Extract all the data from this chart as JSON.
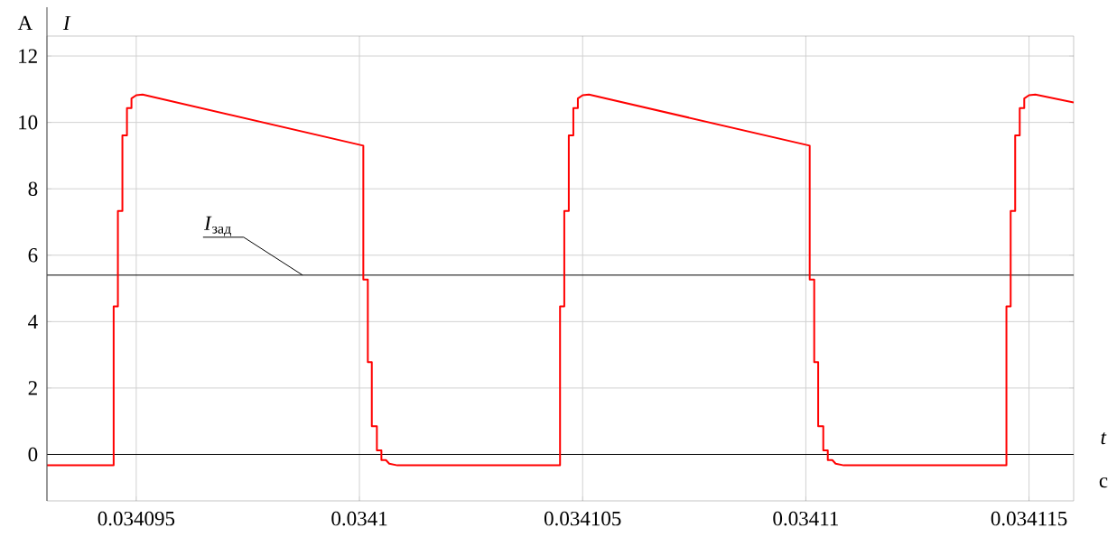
{
  "chart_data": {
    "type": "line",
    "xlabel": "*t*",
    "ylabel": "*I*",
    "annotations": [
      "А",
      "с"
    ],
    "x": [
      0.034093,
      0.034094494,
      0.034094494,
      0.034094589,
      0.034094589,
      0.03409469,
      0.03409469,
      0.034094792,
      0.034094792,
      0.034094893,
      0.034094893,
      0.034095,
      0.034095142,
      0.034100087,
      0.034100087,
      0.034100188,
      0.034100188,
      0.034100277,
      0.034100277,
      0.034100391,
      0.034100391,
      0.034100492,
      0.034100492,
      0.034100593,
      0.034100668,
      0.03410085,
      0.034104494,
      0.034104494,
      0.034104589,
      0.034104589,
      0.03410469,
      0.03410469,
      0.034104792,
      0.034104792,
      0.034104893,
      0.034104893,
      0.034105,
      0.034105142,
      0.034110087,
      0.034110087,
      0.034110188,
      0.034110188,
      0.034110277,
      0.034110277,
      0.034110391,
      0.034110391,
      0.034110492,
      0.034110492,
      0.034110593,
      0.034110668,
      0.03411085,
      0.034114494,
      0.034114494,
      0.034114589,
      0.034114589,
      0.03411469,
      0.03411469,
      0.034114792,
      0.034114792,
      0.034114893,
      0.034114893,
      0.034115,
      0.034115142,
      0.034116
    ],
    "series": [
      {
        "color": "#ff0000",
        "values": [
          -0.33,
          -0.33,
          4.46,
          4.46,
          7.33,
          7.33,
          9.61,
          9.61,
          10.43,
          10.43,
          10.72,
          10.82,
          10.84,
          9.3,
          5.27,
          5.27,
          2.78,
          2.78,
          0.85,
          0.85,
          0.12,
          0.12,
          -0.17,
          -0.17,
          -0.28,
          -0.33,
          -0.33,
          4.46,
          4.46,
          7.33,
          7.33,
          9.61,
          9.61,
          10.43,
          10.43,
          10.72,
          10.82,
          10.84,
          9.3,
          5.27,
          5.27,
          2.78,
          2.78,
          0.85,
          0.85,
          0.12,
          0.12,
          -0.17,
          -0.17,
          -0.28,
          -0.33,
          -0.33,
          4.46,
          4.46,
          7.33,
          7.33,
          9.61,
          9.61,
          10.43,
          10.43,
          10.72,
          10.82,
          10.84,
          10.6
        ]
      }
    ],
    "xlim": [
      0.034093,
      0.034116
    ],
    "ylim": [
      -1.4,
      12.6
    ],
    "xticks": [
      0.034095,
      0.0341,
      0.034105,
      0.03411,
      0.034115
    ],
    "yticks": [
      0,
      2,
      4,
      6,
      8,
      10,
      12
    ],
    "grid": true,
    "marker": "none",
    "line_style": "solid",
    "ref_lines": [
      {
        "axis": "y",
        "value": 5.4,
        "label": "*I*$_{зад}$",
        "color": "#000000"
      },
      {
        "axis": "y",
        "value": 0,
        "color": "#000000"
      }
    ]
  }
}
